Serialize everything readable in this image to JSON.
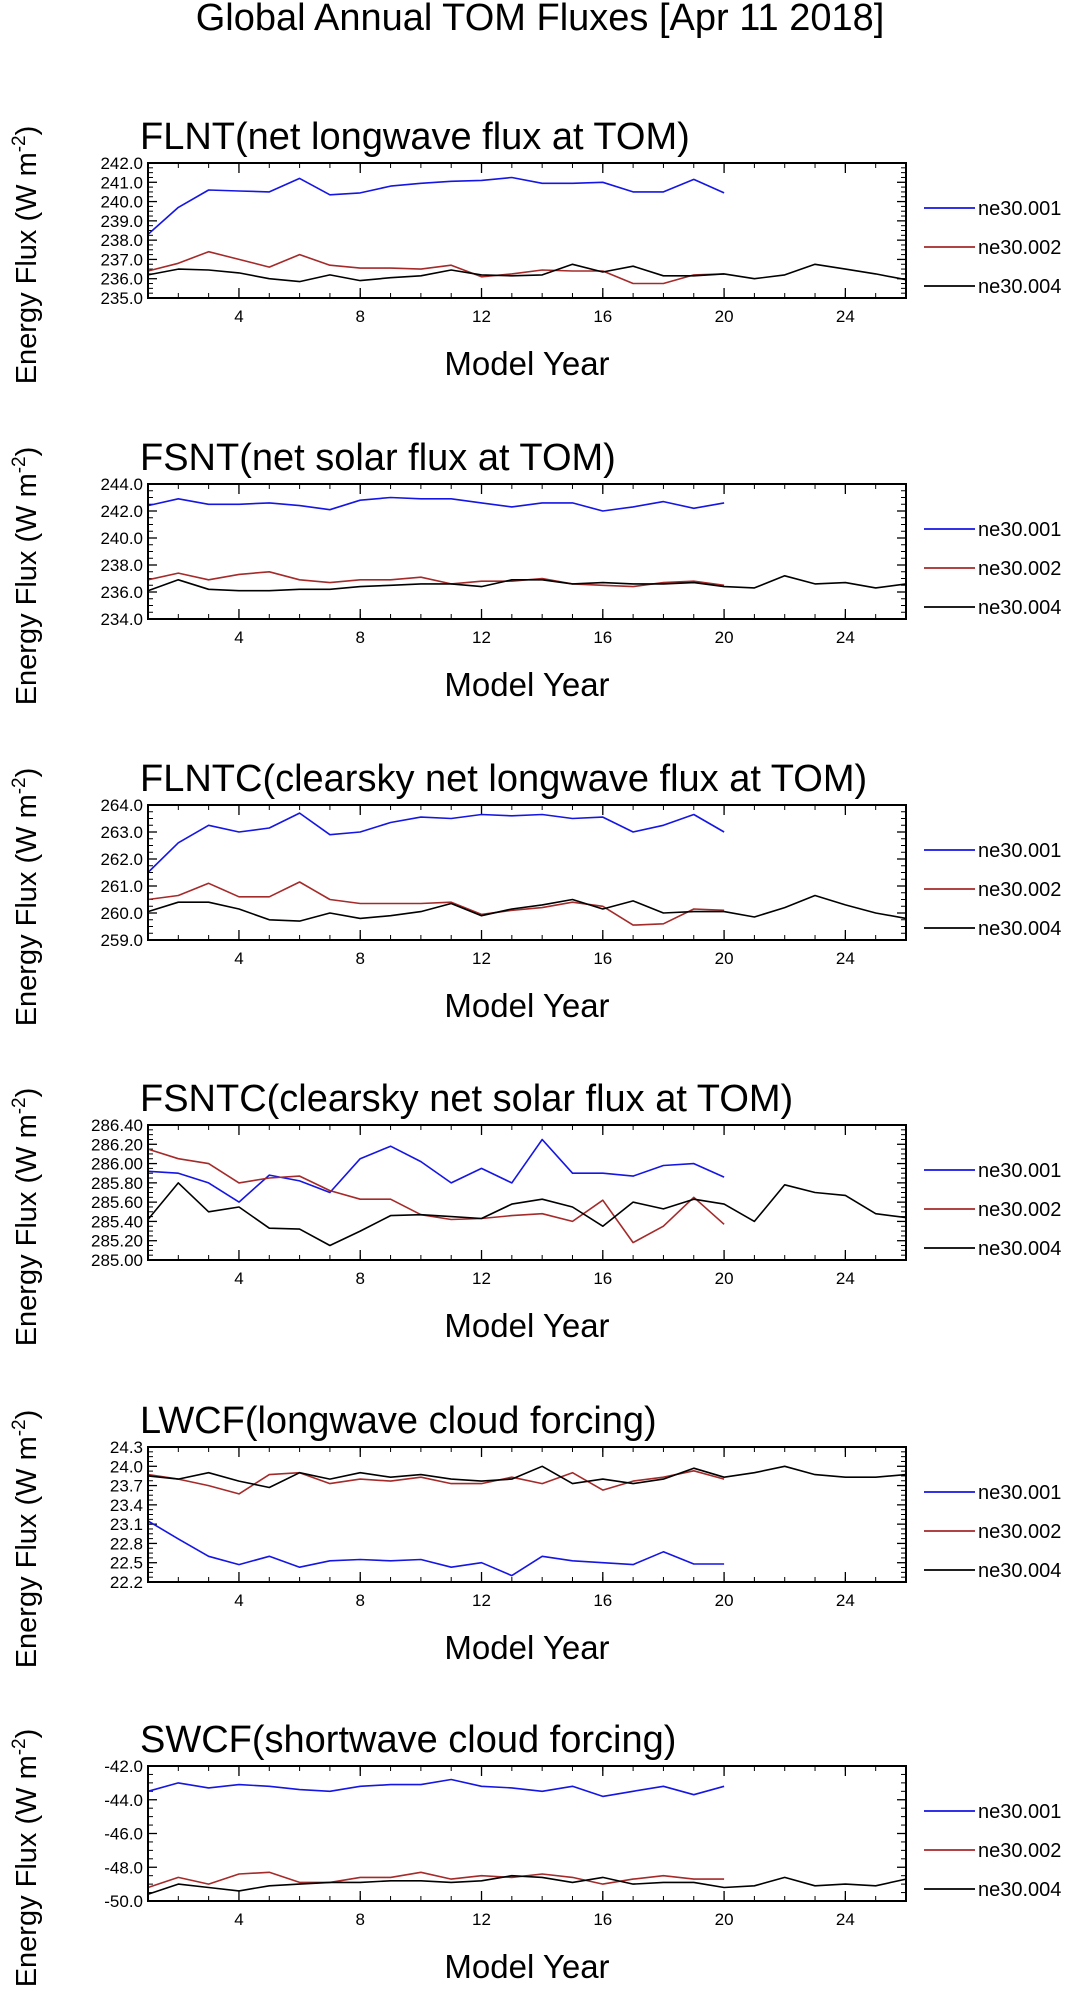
{
  "chart_data": {
    "title": "Global Annual TOM Fluxes [Apr 11 2018]",
    "series_names": [
      "ne30.001",
      "ne30.002",
      "ne30.004"
    ],
    "colors": {
      "ne30.001": "#1515e6",
      "ne30.002": "#a52a2a",
      "ne30.004": "#000000"
    },
    "panels": [
      {
        "type": "line",
        "title": "FLNT(net longwave flux at TOM)",
        "xlabel": "Model Year",
        "ylabel": "Energy Flux (W m",
        "ylabel_sup": "-2",
        "ylabel_close": ")",
        "xlim": [
          1,
          26
        ],
        "ylim": [
          235.0,
          242.0
        ],
        "xticks": [
          "4",
          "8",
          "12",
          "16",
          "20",
          "24"
        ],
        "yticks": [
          "235.0",
          "236.0",
          "237.0",
          "238.0",
          "239.0",
          "240.0",
          "241.0",
          "242.0"
        ],
        "series": [
          {
            "name": "ne30.001",
            "values": [
              238.3,
              239.7,
              240.6,
              240.55,
              240.5,
              241.2,
              240.35,
              240.45,
              240.8,
              240.95,
              241.05,
              241.1,
              241.25,
              240.95,
              240.95,
              241.0,
              240.5,
              240.5,
              241.15,
              240.45
            ]
          },
          {
            "name": "ne30.002",
            "values": [
              236.4,
              236.8,
              237.4,
              237.0,
              236.6,
              237.25,
              236.7,
              236.55,
              236.55,
              236.5,
              236.7,
              236.1,
              236.25,
              236.45,
              236.4,
              236.4,
              235.75,
              235.75,
              236.2,
              236.25
            ]
          },
          {
            "name": "ne30.004",
            "values": [
              236.2,
              236.5,
              236.45,
              236.3,
              236.0,
              235.85,
              236.2,
              235.9,
              236.05,
              236.15,
              236.45,
              236.2,
              236.15,
              236.2,
              236.75,
              236.35,
              236.65,
              236.15,
              236.15,
              236.25,
              236.0,
              236.2,
              236.75,
              236.5,
              236.25,
              235.95
            ]
          }
        ]
      },
      {
        "type": "line",
        "title": "FSNT(net solar flux at TOM)",
        "xlabel": "Model Year",
        "ylabel": "Energy Flux (W m",
        "ylabel_sup": "-2",
        "ylabel_close": ")",
        "xlim": [
          1,
          26
        ],
        "ylim": [
          234.0,
          244.0
        ],
        "xticks": [
          "4",
          "8",
          "12",
          "16",
          "20",
          "24"
        ],
        "yticks": [
          "234.0",
          "236.0",
          "238.0",
          "240.0",
          "242.0",
          "244.0"
        ],
        "series": [
          {
            "name": "ne30.001",
            "values": [
              242.4,
              242.9,
              242.5,
              242.5,
              242.6,
              242.4,
              242.1,
              242.8,
              243.0,
              242.9,
              242.9,
              242.6,
              242.3,
              242.6,
              242.6,
              242.0,
              242.3,
              242.7,
              242.2,
              242.6
            ]
          },
          {
            "name": "ne30.002",
            "values": [
              236.9,
              237.4,
              236.9,
              237.3,
              237.5,
              236.9,
              236.7,
              236.9,
              236.9,
              237.1,
              236.6,
              236.8,
              236.8,
              237.0,
              236.6,
              236.5,
              236.4,
              236.7,
              236.8,
              236.5
            ]
          },
          {
            "name": "ne30.004",
            "values": [
              236.1,
              236.9,
              236.2,
              236.1,
              236.1,
              236.2,
              236.2,
              236.4,
              236.5,
              236.6,
              236.6,
              236.4,
              236.9,
              236.9,
              236.6,
              236.7,
              236.6,
              236.6,
              236.7,
              236.4,
              236.3,
              237.2,
              236.6,
              236.7,
              236.3,
              236.6
            ]
          }
        ]
      },
      {
        "type": "line",
        "title": "FLNTC(clearsky net longwave flux at TOM)",
        "xlabel": "Model Year",
        "ylabel": "Energy Flux (W m",
        "ylabel_sup": "-2",
        "ylabel_close": ")",
        "xlim": [
          1,
          26
        ],
        "ylim": [
          259.0,
          264.0
        ],
        "xticks": [
          "4",
          "8",
          "12",
          "16",
          "20",
          "24"
        ],
        "yticks": [
          "259.0",
          "260.0",
          "261.0",
          "262.0",
          "263.0",
          "264.0"
        ],
        "series": [
          {
            "name": "ne30.001",
            "values": [
              261.5,
              262.6,
              263.25,
              263.0,
              263.15,
              263.7,
              262.9,
              263.0,
              263.35,
              263.55,
              263.5,
              263.65,
              263.6,
              263.65,
              263.5,
              263.55,
              263.0,
              263.25,
              263.65,
              263.0
            ]
          },
          {
            "name": "ne30.002",
            "values": [
              260.5,
              260.65,
              261.1,
              260.6,
              260.6,
              261.15,
              260.5,
              260.35,
              260.35,
              260.35,
              260.4,
              259.95,
              260.1,
              260.2,
              260.4,
              260.25,
              259.55,
              259.6,
              260.15,
              260.1
            ]
          },
          {
            "name": "ne30.004",
            "values": [
              260.05,
              260.4,
              260.4,
              260.15,
              259.75,
              259.7,
              260.0,
              259.8,
              259.9,
              260.05,
              260.35,
              259.9,
              260.15,
              260.3,
              260.5,
              260.15,
              260.45,
              260.0,
              260.05,
              260.05,
              259.85,
              260.2,
              260.65,
              260.3,
              260.0,
              259.8
            ]
          }
        ]
      },
      {
        "type": "line",
        "title": "FSNTC(clearsky net solar flux at TOM)",
        "xlabel": "Model Year",
        "ylabel": "Energy Flux (W m",
        "ylabel_sup": "-2",
        "ylabel_close": ")",
        "xlim": [
          1,
          26
        ],
        "ylim": [
          285.0,
          286.4
        ],
        "xticks": [
          "4",
          "8",
          "12",
          "16",
          "20",
          "24"
        ],
        "yticks": [
          "285.00",
          "285.20",
          "285.40",
          "285.60",
          "285.80",
          "286.00",
          "286.20",
          "286.40"
        ],
        "series": [
          {
            "name": "ne30.001",
            "values": [
              285.92,
              285.9,
              285.8,
              285.6,
              285.88,
              285.82,
              285.7,
              286.05,
              286.18,
              286.02,
              285.8,
              285.95,
              285.8,
              286.25,
              285.9,
              285.9,
              285.87,
              285.98,
              286.0,
              285.86
            ]
          },
          {
            "name": "ne30.002",
            "values": [
              286.15,
              286.05,
              286.0,
              285.8,
              285.85,
              285.87,
              285.72,
              285.63,
              285.63,
              285.47,
              285.42,
              285.43,
              285.46,
              285.48,
              285.4,
              285.62,
              285.18,
              285.35,
              285.65,
              285.37
            ]
          },
          {
            "name": "ne30.004",
            "values": [
              285.42,
              285.8,
              285.5,
              285.55,
              285.33,
              285.32,
              285.15,
              285.3,
              285.46,
              285.47,
              285.45,
              285.43,
              285.58,
              285.63,
              285.55,
              285.35,
              285.6,
              285.53,
              285.63,
              285.58,
              285.4,
              285.78,
              285.7,
              285.67,
              285.48,
              285.44
            ]
          }
        ]
      },
      {
        "type": "line",
        "title": "LWCF(longwave cloud forcing)",
        "xlabel": "Model Year",
        "ylabel": "Energy Flux (W m",
        "ylabel_sup": "-2",
        "ylabel_close": ")",
        "xlim": [
          1,
          26
        ],
        "ylim": [
          22.2,
          24.3
        ],
        "xticks": [
          "4",
          "8",
          "12",
          "16",
          "20",
          "24"
        ],
        "yticks": [
          "22.2",
          "22.5",
          "22.8",
          "23.1",
          "23.4",
          "23.7",
          "24.0",
          "24.3"
        ],
        "series": [
          {
            "name": "ne30.001",
            "values": [
              23.15,
              22.87,
              22.6,
              22.47,
              22.6,
              22.43,
              22.53,
              22.55,
              22.53,
              22.55,
              22.43,
              22.5,
              22.3,
              22.6,
              22.53,
              22.5,
              22.47,
              22.67,
              22.48,
              22.48
            ]
          },
          {
            "name": "ne30.002",
            "values": [
              23.87,
              23.8,
              23.7,
              23.57,
              23.87,
              23.9,
              23.73,
              23.8,
              23.77,
              23.83,
              23.73,
              23.73,
              23.83,
              23.73,
              23.9,
              23.63,
              23.77,
              23.83,
              23.93,
              23.8
            ]
          },
          {
            "name": "ne30.004",
            "values": [
              23.85,
              23.8,
              23.9,
              23.77,
              23.67,
              23.9,
              23.8,
              23.9,
              23.83,
              23.87,
              23.8,
              23.77,
              23.8,
              24.0,
              23.73,
              23.8,
              23.73,
              23.8,
              23.97,
              23.83,
              23.9,
              24.0,
              23.87,
              23.83,
              23.83,
              23.87
            ]
          }
        ]
      },
      {
        "type": "line",
        "title": "SWCF(shortwave cloud forcing)",
        "xlabel": "Model Year",
        "ylabel": "Energy Flux (W m",
        "ylabel_sup": "-2",
        "ylabel_close": ")",
        "xlim": [
          1,
          26
        ],
        "ylim": [
          -50.0,
          -42.0
        ],
        "xticks": [
          "4",
          "8",
          "12",
          "16",
          "20",
          "24"
        ],
        "yticks": [
          "-50.0",
          "-48.0",
          "-46.0",
          "-44.0",
          "-42.0"
        ],
        "series": [
          {
            "name": "ne30.001",
            "values": [
              -43.5,
              -43.0,
              -43.3,
              -43.1,
              -43.2,
              -43.4,
              -43.5,
              -43.2,
              -43.1,
              -43.1,
              -42.8,
              -43.2,
              -43.3,
              -43.5,
              -43.2,
              -43.8,
              -43.5,
              -43.2,
              -43.7,
              -43.2
            ]
          },
          {
            "name": "ne30.002",
            "values": [
              -49.2,
              -48.6,
              -49.0,
              -48.4,
              -48.3,
              -48.9,
              -48.9,
              -48.6,
              -48.6,
              -48.3,
              -48.7,
              -48.5,
              -48.6,
              -48.4,
              -48.6,
              -49.0,
              -48.7,
              -48.5,
              -48.7,
              -48.7
            ]
          },
          {
            "name": "ne30.004",
            "values": [
              -49.6,
              -49.0,
              -49.2,
              -49.4,
              -49.1,
              -49.0,
              -48.9,
              -48.9,
              -48.8,
              -48.8,
              -48.9,
              -48.8,
              -48.5,
              -48.6,
              -48.9,
              -48.6,
              -49.0,
              -48.9,
              -48.9,
              -49.2,
              -49.1,
              -48.6,
              -49.1,
              -49.0,
              -49.1,
              -48.7
            ]
          }
        ]
      }
    ]
  }
}
